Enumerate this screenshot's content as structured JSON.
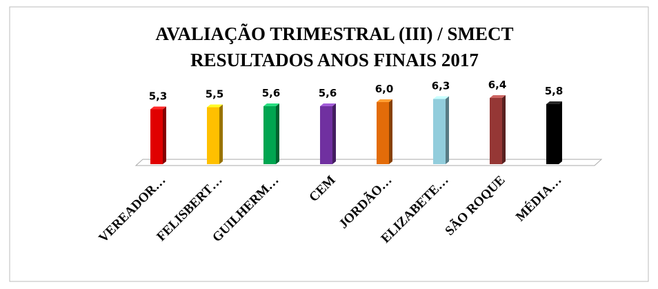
{
  "chart_data": {
    "type": "bar3d",
    "title": "AVALIAÇÃO TRIMESTRAL (III)  / SMECT",
    "subtitle": "RESULTADOS ANOS FINAIS 2017",
    "categories": [
      "VEREADOR…",
      "FELISBERT…",
      "GUILHERM…",
      "CEM",
      "JORDÃO…",
      "ELIZABETE…",
      "SÃO ROQUE",
      "MÉDIA…"
    ],
    "values": [
      5.3,
      5.5,
      5.6,
      5.6,
      6.0,
      6.3,
      6.4,
      5.8
    ],
    "value_labels": [
      "5,3",
      "5,5",
      "5,6",
      "5,6",
      "6,0",
      "6,3",
      "6,4",
      "5,8"
    ],
    "colors": [
      "#e00000",
      "#ffc000",
      "#00a550",
      "#7030a0",
      "#e36c09",
      "#92cddc",
      "#953735",
      "#000000"
    ]
  }
}
